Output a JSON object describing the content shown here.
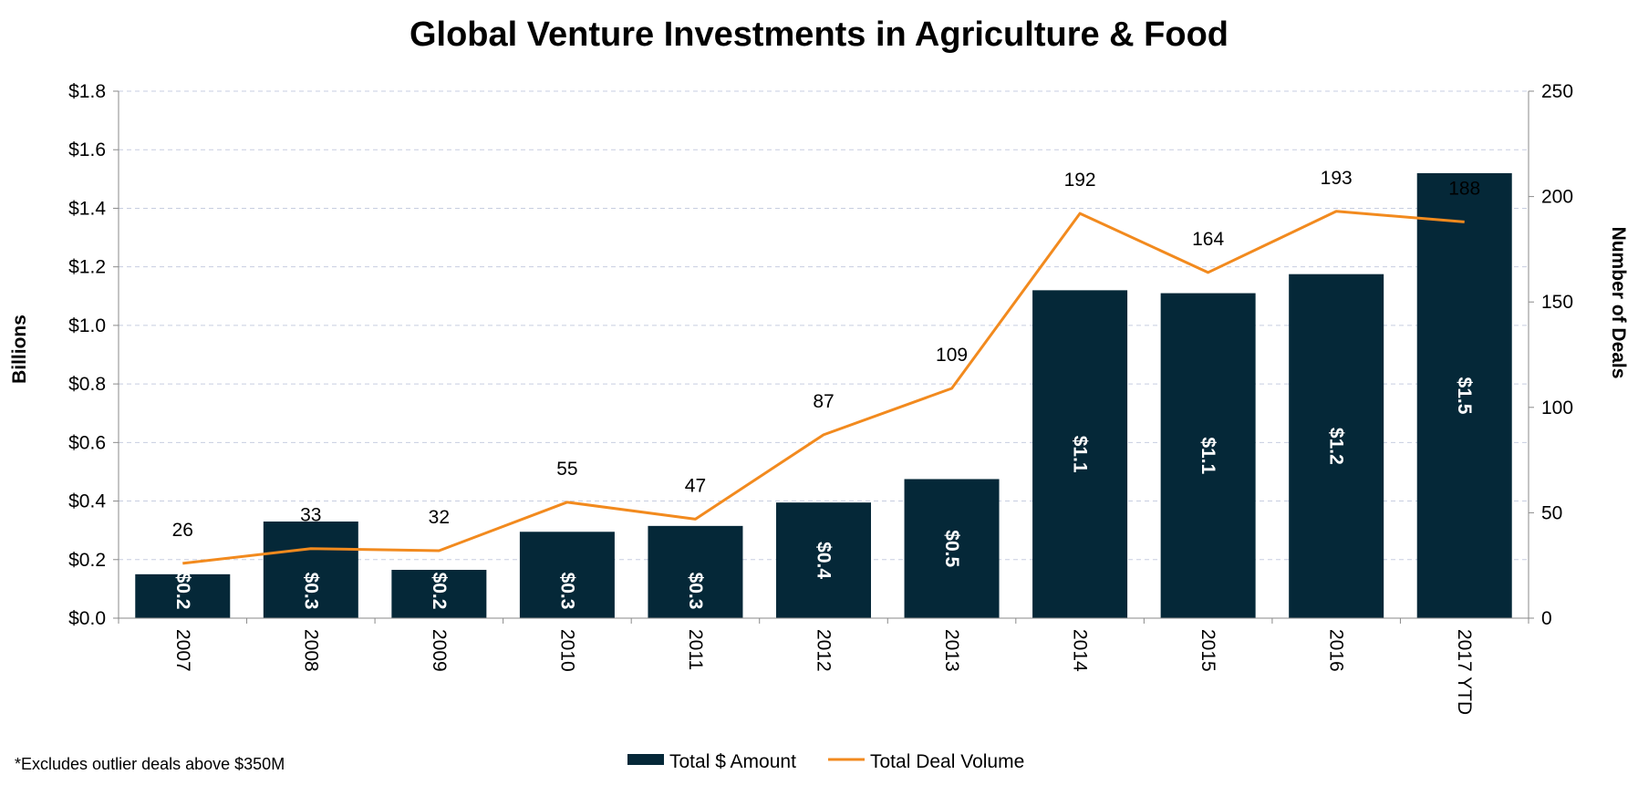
{
  "chart_data": {
    "type": "bar",
    "title": "Global Venture Investments in Agriculture & Food",
    "categories": [
      "2007",
      "2008",
      "2009",
      "2010",
      "2011",
      "2012",
      "2013",
      "2014",
      "2015",
      "2016",
      "2017 YTD"
    ],
    "series": [
      {
        "name": "Total $ Amount",
        "type": "bar",
        "axis": "left",
        "color": "#052838",
        "values": [
          0.15,
          0.33,
          0.165,
          0.295,
          0.315,
          0.395,
          0.475,
          1.12,
          1.11,
          1.175,
          1.52
        ],
        "labels": [
          "$0.2",
          "$0.3",
          "$0.2",
          "$0.3",
          "$0.3",
          "$0.4",
          "$0.5",
          "$1.1",
          "$1.1",
          "$1.2",
          "$1.5"
        ]
      },
      {
        "name": "Total Deal Volume",
        "type": "line",
        "axis": "right",
        "color": "#f28a1e",
        "values": [
          26,
          33,
          32,
          55,
          47,
          87,
          109,
          192,
          164,
          193,
          188
        ],
        "labels": [
          "26",
          "33",
          "32",
          "55",
          "47",
          "87",
          "109",
          "192",
          "164",
          "193",
          "188"
        ]
      }
    ],
    "ylabel": "Billions",
    "ylim": [
      0,
      1.8
    ],
    "yticks": [
      "$0.0",
      "$0.2",
      "$0.4",
      "$0.6",
      "$0.8",
      "$1.0",
      "$1.2",
      "$1.4",
      "$1.6",
      "$1.8"
    ],
    "y2label": "Number of Deals",
    "y2lim": [
      0,
      250
    ],
    "y2ticks": [
      "0",
      "50",
      "100",
      "150",
      "200",
      "250"
    ],
    "grid": true,
    "legend": "bottom-center",
    "footnote": "*Excludes outlier deals above $350M"
  }
}
